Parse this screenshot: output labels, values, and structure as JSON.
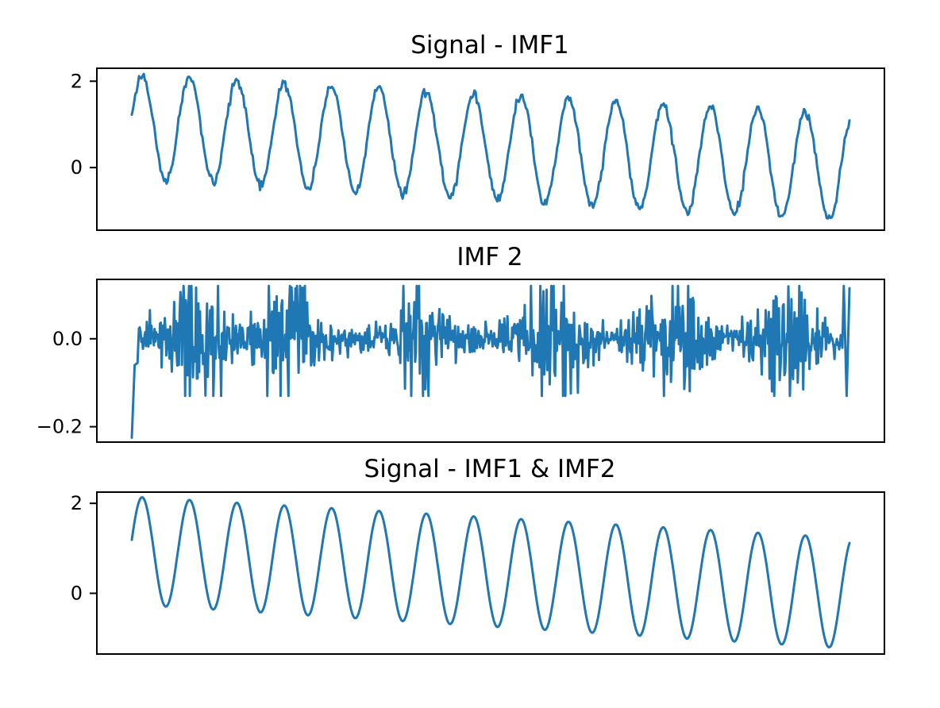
{
  "chart_data": [
    {
      "type": "line",
      "title": "Signal - IMF1",
      "xlabel": "",
      "ylabel": "",
      "x_ticks": "hidden",
      "grid": false,
      "xlim": [
        0,
        1000
      ],
      "ylim": [
        -1.45,
        2.3
      ],
      "yticks": [
        {
          "value": 2,
          "label": "2"
        },
        {
          "value": 0,
          "label": "0"
        }
      ],
      "series": [
        {
          "color": "#1f77b4",
          "generator": {
            "kind": "decaying-sine",
            "points": 600,
            "x_end": 1000,
            "cycles": 15.15,
            "phase": 0.2,
            "amp_start": 1.2,
            "amp_end": 1.23,
            "offset_start": 0.95,
            "offset_end": 0.0,
            "noise": 0.05
          }
        }
      ]
    },
    {
      "type": "line",
      "title": "IMF 2",
      "xlabel": "",
      "ylabel": "",
      "x_ticks": "hidden",
      "grid": false,
      "xlim": [
        0,
        1000
      ],
      "ylim": [
        -0.235,
        0.135
      ],
      "yticks": [
        {
          "value": 0.0,
          "label": "0.0"
        },
        {
          "value": -0.2,
          "label": "−0.2"
        }
      ],
      "series": [
        {
          "color": "#1f77b4",
          "start_points": [
            [
              0,
              -0.225
            ],
            [
              4,
              -0.06
            ],
            [
              8,
              -0.055
            ]
          ],
          "end_points": [
            [
              992,
              0.12
            ],
            [
              996,
              -0.13
            ],
            [
              1000,
              0.115
            ]
          ],
          "generator": {
            "kind": "bursty-noise",
            "points": 900,
            "x_start": 10,
            "x_end": 990,
            "base_amplitude": 0.025,
            "bursts": [
              {
                "center": 90,
                "width": 40,
                "amplitude": 0.1
              },
              {
                "center": 210,
                "width": 40,
                "amplitude": 0.09
              },
              {
                "center": 400,
                "width": 30,
                "amplitude": 0.11
              },
              {
                "center": 590,
                "width": 40,
                "amplitude": 0.12
              },
              {
                "center": 750,
                "width": 40,
                "amplitude": 0.1
              },
              {
                "center": 910,
                "width": 40,
                "amplitude": 0.09
              }
            ]
          }
        }
      ]
    },
    {
      "type": "line",
      "title": "Signal - IMF1 & IMF2",
      "xlabel": "",
      "ylabel": "",
      "x_ticks": "hidden",
      "grid": false,
      "xlim": [
        0,
        1000
      ],
      "ylim": [
        -1.35,
        2.25
      ],
      "yticks": [
        {
          "value": 2,
          "label": "2"
        },
        {
          "value": 0,
          "label": "0"
        }
      ],
      "series": [
        {
          "color": "#1f77b4",
          "generator": {
            "kind": "decaying-sine",
            "points": 600,
            "x_end": 1000,
            "cycles": 15.15,
            "phase": 0.2,
            "amp_start": 1.2,
            "amp_end": 1.23,
            "offset_start": 0.95,
            "offset_end": 0.0,
            "noise": 0.0
          }
        }
      ]
    }
  ]
}
